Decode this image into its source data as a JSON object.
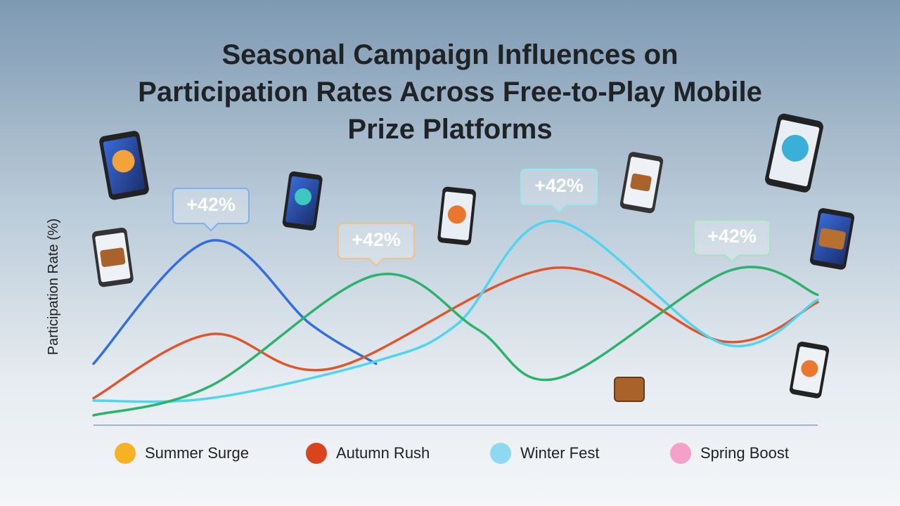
{
  "chart_data": {
    "type": "line",
    "title": "Seasonal Campaign Influences on Participation Rates Across Free-to-Play Mobile Prize Platforms",
    "ylabel": "Participation Rate (%)",
    "xlim": [
      0,
      10
    ],
    "ylim": [
      0,
      100
    ],
    "series": [
      {
        "name": "Summer Surge",
        "color": "#2f6fe0",
        "x": [
          0,
          1.62,
          3.0,
          3.9
        ],
        "values": [
          25,
          75,
          41,
          25
        ]
      },
      {
        "name": "Autumn Rush",
        "color": "#e0562a",
        "x": [
          0,
          1.62,
          3.28,
          6.38,
          8.7,
          10
        ],
        "values": [
          11,
          37,
          23,
          64,
          34,
          50
        ]
      },
      {
        "name": "Winter Fest",
        "color": "#4fd6ee",
        "x": [
          0,
          1.62,
          3.9,
          5.02,
          6.38,
          8.7,
          10
        ],
        "values": [
          10,
          11,
          26,
          41,
          83,
          33,
          51
        ]
      },
      {
        "name": "Spring Boost",
        "color": "#2bb36b",
        "x": [
          0,
          1.62,
          3.9,
          5.3,
          6.4,
          8.8,
          10
        ],
        "values": [
          4,
          16,
          61,
          39,
          19,
          63,
          53
        ]
      }
    ],
    "annotations": [
      "+42%",
      "+42%",
      "+42%",
      "+42%"
    ]
  }
}
